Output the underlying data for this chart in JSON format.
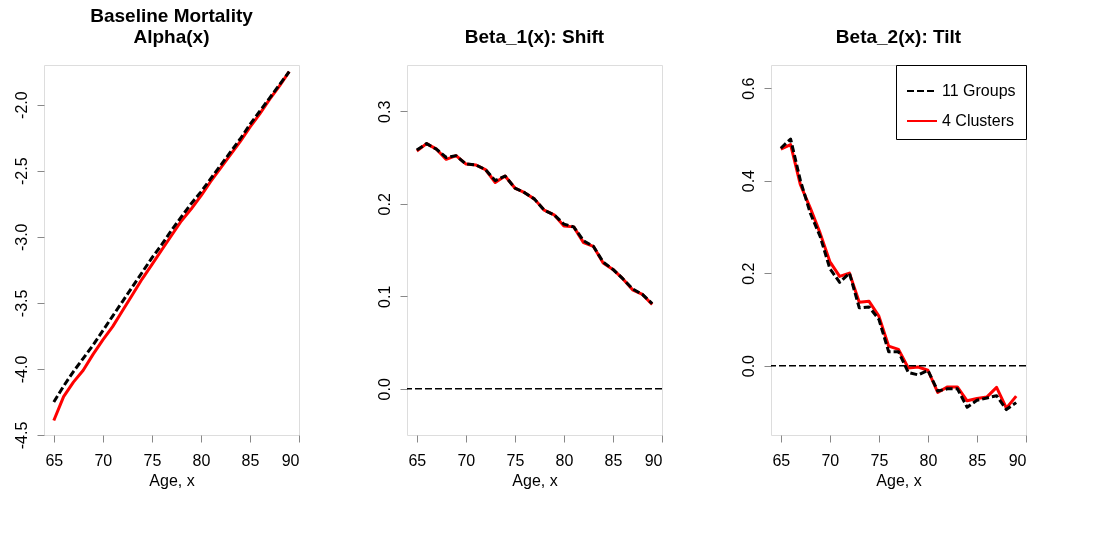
{
  "chart_data": [
    {
      "type": "line",
      "title": "Baseline Mortality\nAlpha(x)",
      "xlabel": "Age, x",
      "x": [
        65,
        66,
        67,
        68,
        69,
        70,
        71,
        72,
        73,
        74,
        75,
        76,
        77,
        78,
        79,
        80,
        81,
        82,
        83,
        84,
        85,
        86,
        87,
        88,
        89
      ],
      "xlim": [
        64,
        90
      ],
      "xticks": [
        65,
        70,
        75,
        80,
        85,
        90
      ],
      "ylim": [
        -4.5,
        -1.7
      ],
      "yticks": [
        -4.5,
        {
          "value": -4.0,
          "label": "-4.0"
        },
        -3.5,
        {
          "value": -3.0,
          "label": "-3.0"
        },
        -2.5,
        {
          "value": -2.0,
          "label": "-2.0"
        }
      ],
      "grid": false,
      "legend": false,
      "series": [
        {
          "color": "#000000",
          "line_style": "dashed",
          "values": [
            -4.25,
            -4.13,
            -4.02,
            -3.92,
            -3.82,
            -3.71,
            -3.6,
            -3.49,
            -3.38,
            -3.27,
            -3.16,
            -3.06,
            -2.95,
            -2.85,
            -2.75,
            -2.66,
            -2.56,
            -2.46,
            -2.36,
            -2.26,
            -2.15,
            -2.05,
            -1.95,
            -1.85,
            -1.75
          ]
        },
        {
          "color": "#ff0000",
          "line_style": "solid",
          "values": [
            -4.39,
            -4.21,
            -4.1,
            -4.01,
            -3.89,
            -3.78,
            -3.68,
            -3.56,
            -3.44,
            -3.32,
            -3.21,
            -3.1,
            -2.99,
            -2.88,
            -2.79,
            -2.69,
            -2.58,
            -2.48,
            -2.38,
            -2.28,
            -2.17,
            -2.07,
            -1.96,
            -1.86,
            -1.75
          ]
        }
      ]
    },
    {
      "type": "line",
      "title": "Beta_1(x): Shift",
      "xlabel": "Age, x",
      "x": [
        65,
        66,
        67,
        68,
        69,
        70,
        71,
        72,
        73,
        74,
        75,
        76,
        77,
        78,
        79,
        80,
        81,
        82,
        83,
        84,
        85,
        86,
        87,
        88,
        89
      ],
      "xlim": [
        64,
        90
      ],
      "xticks": [
        65,
        70,
        75,
        80,
        85,
        90
      ],
      "ylim": [
        -0.05,
        0.35
      ],
      "yticks": [
        {
          "value": 0,
          "label": "0.0"
        },
        0.1,
        0.2,
        0.3
      ],
      "grid": false,
      "legend": false,
      "ref_lines": [
        {
          "axis": "y",
          "value": 0,
          "color": "#000000",
          "line_style": "dashed"
        }
      ],
      "series": [
        {
          "color": "#000000",
          "line_style": "dashed",
          "values": [
            0.258,
            0.265,
            0.259,
            0.25,
            0.252,
            0.243,
            0.242,
            0.237,
            0.225,
            0.23,
            0.217,
            0.212,
            0.205,
            0.193,
            0.188,
            0.178,
            0.175,
            0.16,
            0.154,
            0.137,
            0.129,
            0.119,
            0.108,
            0.102,
            0.092
          ]
        },
        {
          "color": "#ff0000",
          "line_style": "solid",
          "values": [
            0.257,
            0.265,
            0.259,
            0.248,
            0.252,
            0.243,
            0.242,
            0.237,
            0.223,
            0.23,
            0.217,
            0.212,
            0.205,
            0.193,
            0.188,
            0.176,
            0.175,
            0.158,
            0.154,
            0.136,
            0.129,
            0.119,
            0.107,
            0.102,
            0.091
          ]
        }
      ]
    },
    {
      "type": "line",
      "title": "Beta_2(x): Tilt",
      "xlabel": "Age, x",
      "x": [
        65,
        66,
        67,
        68,
        69,
        70,
        71,
        72,
        73,
        74,
        75,
        76,
        77,
        78,
        79,
        80,
        81,
        82,
        83,
        84,
        85,
        86,
        87,
        88,
        89
      ],
      "xlim": [
        64,
        90
      ],
      "xticks": [
        65,
        70,
        75,
        80,
        85,
        90
      ],
      "ylim": [
        -0.15,
        0.65
      ],
      "yticks": [
        {
          "value": 0,
          "label": "0.0"
        },
        0.2,
        0.4,
        0.6
      ],
      "grid": false,
      "legend": "top right",
      "ref_lines": [
        {
          "axis": "y",
          "value": 0,
          "color": "#000000",
          "line_style": "dashed"
        }
      ],
      "series": [
        {
          "name": "11 Groups",
          "color": "#000000",
          "line_style": "dashed",
          "values": [
            0.47,
            0.49,
            0.4,
            0.33,
            0.28,
            0.21,
            0.18,
            0.2,
            0.125,
            0.127,
            0.1,
            0.03,
            0.03,
            -0.015,
            -0.02,
            -0.01,
            -0.055,
            -0.05,
            -0.05,
            -0.09,
            -0.075,
            -0.07,
            -0.065,
            -0.095,
            -0.08
          ]
        },
        {
          "name": "4 Clusters",
          "color": "#ff0000",
          "line_style": "solid",
          "values": [
            0.468,
            0.478,
            0.391,
            0.341,
            0.287,
            0.225,
            0.193,
            0.2,
            0.137,
            0.139,
            0.107,
            0.042,
            0.035,
            -0.005,
            -0.003,
            -0.01,
            -0.058,
            -0.046,
            -0.046,
            -0.076,
            -0.071,
            -0.068,
            -0.047,
            -0.092,
            -0.066
          ]
        }
      ]
    }
  ]
}
